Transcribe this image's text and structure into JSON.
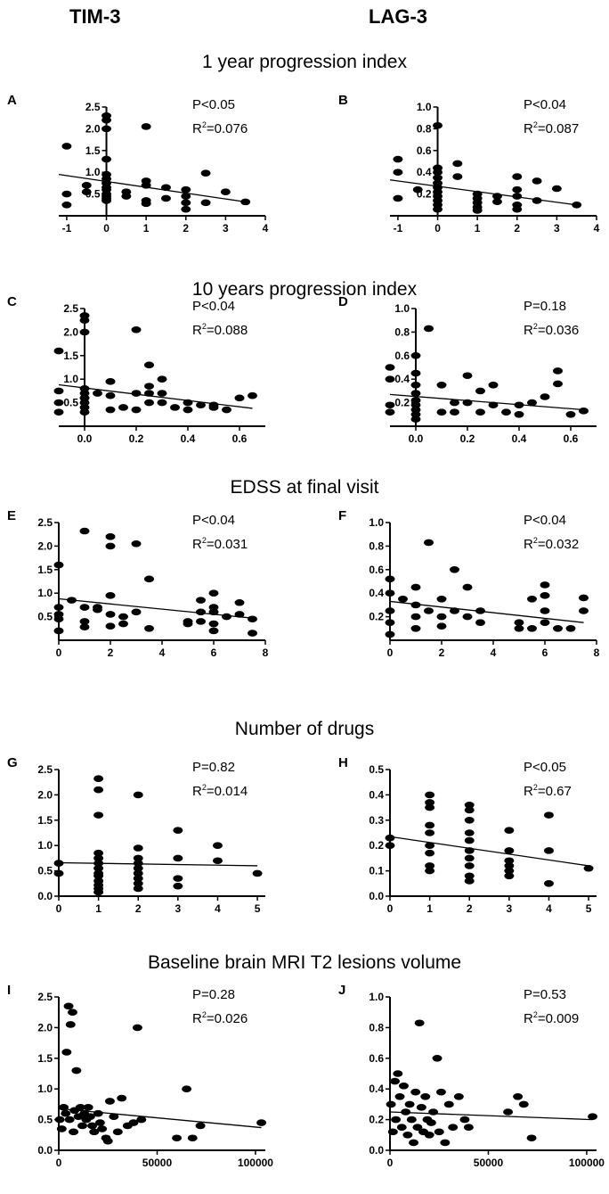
{
  "columns": {
    "left": "TIM-3",
    "right": "LAG-3"
  },
  "sections": [
    "1 year progression index",
    "10 years progression index",
    "EDSS at final visit",
    "Number of drugs",
    "Baseline brain MRI T2 lesions volume"
  ],
  "chart_data": [
    {
      "panel": "A",
      "type": "scatter",
      "section": "1 year progression index",
      "marker": "TIM-3",
      "p_text": "P<0.05",
      "r2_label": "R",
      "r2_value": "=0.076",
      "xlim": [
        -1.2,
        4
      ],
      "ylim": [
        0,
        2.5
      ],
      "xticks": [
        "-1",
        "0",
        "1",
        "2",
        "3",
        "4"
      ],
      "yticks": [
        "0.5",
        "1.0",
        "1.5",
        "2.0",
        "2.5"
      ],
      "xtick_values": [
        -1,
        0,
        1,
        2,
        3,
        4
      ],
      "ytick_values": [
        0.5,
        1.0,
        1.5,
        2.0,
        2.5
      ],
      "fit": {
        "x": [
          -1.2,
          3.5
        ],
        "y": [
          0.95,
          0.32
        ]
      },
      "x": [
        -1,
        -1,
        -1,
        -0.5,
        -0.5,
        0,
        0,
        0,
        0,
        0,
        0,
        0,
        0,
        0,
        0,
        0,
        0,
        0,
        0.5,
        0.5,
        1,
        1,
        1,
        1,
        1,
        1.5,
        1.5,
        2,
        2,
        2,
        2,
        2.5,
        2.5,
        3,
        3.5
      ],
      "y": [
        1.6,
        0.5,
        0.25,
        0.7,
        0.55,
        2.3,
        2.2,
        2.0,
        1.3,
        0.95,
        0.85,
        0.75,
        0.65,
        0.6,
        0.5,
        0.45,
        0.4,
        0.35,
        0.55,
        0.45,
        2.05,
        0.8,
        0.7,
        0.35,
        0.28,
        0.65,
        0.4,
        0.6,
        0.45,
        0.3,
        0.15,
        0.98,
        0.3,
        0.55,
        0.32
      ]
    },
    {
      "panel": "B",
      "type": "scatter",
      "section": "1 year progression index",
      "marker": "LAG-3",
      "p_text": "P<0.04",
      "r2_label": "R",
      "r2_value": "=0.087",
      "xlim": [
        -1.2,
        4
      ],
      "ylim": [
        0,
        1.0
      ],
      "xticks": [
        "-1",
        "0",
        "1",
        "2",
        "3",
        "4"
      ],
      "yticks": [
        "0.2",
        "0.4",
        "0.6",
        "0.8",
        "1.0"
      ],
      "xtick_values": [
        -1,
        0,
        1,
        2,
        3,
        4
      ],
      "ytick_values": [
        0.2,
        0.4,
        0.6,
        0.8,
        1.0
      ],
      "fit": {
        "x": [
          -1.2,
          3.5
        ],
        "y": [
          0.33,
          0.1
        ]
      },
      "x": [
        -1,
        -1,
        -1,
        -0.5,
        0,
        0,
        0,
        0,
        0,
        0,
        0,
        0,
        0,
        0,
        0,
        0.5,
        0.5,
        1,
        1,
        1,
        1,
        1,
        1.5,
        1.5,
        2,
        2,
        2,
        2,
        2,
        2.5,
        2.5,
        3,
        3.5
      ],
      "y": [
        0.52,
        0.4,
        0.16,
        0.24,
        0.83,
        0.44,
        0.4,
        0.35,
        0.3,
        0.26,
        0.22,
        0.18,
        0.14,
        0.1,
        0.06,
        0.48,
        0.36,
        0.2,
        0.16,
        0.12,
        0.08,
        0.05,
        0.18,
        0.13,
        0.36,
        0.24,
        0.18,
        0.1,
        0.06,
        0.32,
        0.14,
        0.25,
        0.1
      ]
    },
    {
      "panel": "C",
      "type": "scatter",
      "section": "10 years progression index",
      "marker": "TIM-3",
      "p_text": "P<0.04",
      "r2_label": "R",
      "r2_value": "=0.088",
      "xlim": [
        -0.1,
        0.7
      ],
      "ylim": [
        0,
        2.5
      ],
      "xticks": [
        "0.0",
        "0.2",
        "0.4",
        "0.6"
      ],
      "yticks": [
        "0.5",
        "1.0",
        "1.5",
        "2.0",
        "2.5"
      ],
      "xtick_values": [
        0,
        0.2,
        0.4,
        0.6
      ],
      "ytick_values": [
        0.5,
        1.0,
        1.5,
        2.0,
        2.5
      ],
      "fit": {
        "x": [
          -0.1,
          0.65
        ],
        "y": [
          0.88,
          0.38
        ]
      },
      "x": [
        -0.1,
        -0.1,
        -0.1,
        -0.1,
        0,
        0,
        0,
        0,
        0,
        0,
        0,
        0,
        0,
        0.05,
        0.1,
        0.1,
        0.1,
        0.15,
        0.2,
        0.2,
        0.2,
        0.25,
        0.25,
        0.25,
        0.25,
        0.3,
        0.3,
        0.3,
        0.35,
        0.4,
        0.4,
        0.45,
        0.5,
        0.5,
        0.55,
        0.6,
        0.65
      ],
      "y": [
        1.6,
        0.5,
        0.3,
        0.75,
        2.35,
        2.25,
        2.0,
        0.8,
        0.7,
        0.6,
        0.5,
        0.4,
        0.3,
        0.7,
        0.95,
        0.65,
        0.35,
        0.4,
        2.05,
        0.7,
        0.35,
        1.3,
        0.85,
        0.7,
        0.5,
        1.0,
        0.7,
        0.5,
        0.4,
        0.5,
        0.35,
        0.45,
        0.45,
        0.4,
        0.35,
        0.6,
        0.65
      ]
    },
    {
      "panel": "D",
      "type": "scatter",
      "section": "10 years progression index",
      "marker": "LAG-3",
      "p_text": "P=0.18",
      "r2_label": "R",
      "r2_value": "=0.036",
      "xlim": [
        -0.1,
        0.7
      ],
      "ylim": [
        0,
        1.0
      ],
      "xticks": [
        "0.0",
        "0.2",
        "0.4",
        "0.6"
      ],
      "yticks": [
        "0.2",
        "0.4",
        "0.6",
        "0.8",
        "1.0"
      ],
      "xtick_values": [
        0,
        0.2,
        0.4,
        0.6
      ],
      "ytick_values": [
        0.2,
        0.4,
        0.6,
        0.8,
        1.0
      ],
      "fit": {
        "x": [
          -0.1,
          0.65
        ],
        "y": [
          0.27,
          0.14
        ]
      },
      "x": [
        -0.1,
        -0.1,
        -0.1,
        -0.1,
        0,
        0,
        0,
        0,
        0,
        0,
        0,
        0,
        0,
        0.05,
        0.1,
        0.1,
        0.15,
        0.15,
        0.2,
        0.2,
        0.25,
        0.25,
        0.3,
        0.3,
        0.35,
        0.4,
        0.4,
        0.45,
        0.5,
        0.55,
        0.55,
        0.6,
        0.65
      ],
      "y": [
        0.5,
        0.4,
        0.18,
        0.12,
        0.6,
        0.45,
        0.35,
        0.28,
        0.22,
        0.18,
        0.14,
        0.1,
        0.06,
        0.83,
        0.35,
        0.12,
        0.2,
        0.12,
        0.43,
        0.2,
        0.3,
        0.12,
        0.35,
        0.18,
        0.12,
        0.18,
        0.1,
        0.2,
        0.25,
        0.47,
        0.36,
        0.1,
        0.13
      ]
    },
    {
      "panel": "E",
      "type": "scatter",
      "section": "EDSS at final visit",
      "marker": "TIM-3",
      "p_text": "P<0.04",
      "r2_label": "R",
      "r2_value": "=0.031",
      "xlim": [
        0,
        8
      ],
      "ylim": [
        0,
        2.5
      ],
      "xticks": [
        "0",
        "2",
        "4",
        "6",
        "8"
      ],
      "yticks": [
        "0.5",
        "1.0",
        "1.5",
        "2.0",
        "2.5"
      ],
      "xtick_values": [
        0,
        2,
        4,
        6,
        8
      ],
      "ytick_values": [
        0.5,
        1.0,
        1.5,
        2.0,
        2.5
      ],
      "fit": {
        "x": [
          0,
          7.5
        ],
        "y": [
          0.88,
          0.47
        ]
      },
      "x": [
        0,
        0,
        0,
        0,
        0,
        0.5,
        1,
        1,
        1,
        1,
        1.5,
        1.5,
        2,
        2,
        2,
        2,
        2,
        2.5,
        2.5,
        3,
        3,
        3.5,
        3.5,
        5,
        5,
        5.5,
        5.5,
        5.5,
        6,
        6,
        6,
        6,
        6,
        6.5,
        7,
        7,
        7.5,
        7.5
      ],
      "y": [
        1.6,
        0.7,
        0.55,
        0.45,
        0.2,
        0.85,
        2.32,
        0.7,
        0.4,
        0.28,
        0.7,
        0.65,
        2.2,
        2.0,
        0.95,
        0.55,
        0.3,
        0.5,
        0.35,
        2.05,
        0.6,
        1.3,
        0.25,
        0.4,
        0.35,
        0.85,
        0.6,
        0.4,
        1.0,
        0.7,
        0.6,
        0.35,
        0.2,
        0.5,
        0.8,
        0.55,
        0.45,
        0.15
      ]
    },
    {
      "panel": "F",
      "type": "scatter",
      "section": "EDSS at final visit",
      "marker": "LAG-3",
      "p_text": "P<0.04",
      "r2_label": "R",
      "r2_value": "=0.032",
      "xlim": [
        0,
        8
      ],
      "ylim": [
        0,
        1.0
      ],
      "xticks": [
        "0",
        "2",
        "4",
        "6",
        "8"
      ],
      "yticks": [
        "0.2",
        "0.4",
        "0.6",
        "0.8",
        "1.0"
      ],
      "xtick_values": [
        0,
        2,
        4,
        6,
        8
      ],
      "ytick_values": [
        0.2,
        0.4,
        0.6,
        0.8,
        1.0
      ],
      "fit": {
        "x": [
          0,
          7.5
        ],
        "y": [
          0.33,
          0.15
        ]
      },
      "x": [
        0,
        0,
        0,
        0,
        0,
        0.5,
        1,
        1,
        1,
        1,
        1.5,
        1.5,
        2,
        2,
        2,
        2.5,
        2.5,
        3,
        3,
        3.5,
        3.5,
        5,
        5,
        5.5,
        5.5,
        6,
        6,
        6,
        6,
        6.5,
        7,
        7.5,
        7.5
      ],
      "y": [
        0.52,
        0.4,
        0.25,
        0.15,
        0.05,
        0.35,
        0.45,
        0.3,
        0.2,
        0.1,
        0.83,
        0.25,
        0.35,
        0.2,
        0.12,
        0.6,
        0.25,
        0.45,
        0.2,
        0.25,
        0.15,
        0.15,
        0.1,
        0.35,
        0.1,
        0.47,
        0.38,
        0.25,
        0.15,
        0.1,
        0.1,
        0.36,
        0.25
      ]
    },
    {
      "panel": "G",
      "type": "scatter",
      "section": "Number of drugs",
      "marker": "TIM-3",
      "p_text": "P=0.82",
      "r2_label": "R",
      "r2_value": "=0.014",
      "xlim": [
        0,
        5.2
      ],
      "ylim": [
        0,
        2.5
      ],
      "xticks": [
        "0",
        "1",
        "2",
        "3",
        "4",
        "5"
      ],
      "yticks": [
        "0.0",
        "0.5",
        "1.0",
        "1.5",
        "2.0",
        "2.5"
      ],
      "xtick_values": [
        0,
        1,
        2,
        3,
        4,
        5
      ],
      "ytick_values": [
        0,
        0.5,
        1.0,
        1.5,
        2.0,
        2.5
      ],
      "fit": {
        "x": [
          0,
          5
        ],
        "y": [
          0.66,
          0.6
        ]
      },
      "x": [
        0,
        0,
        1,
        1,
        1,
        1,
        1,
        1,
        1,
        1,
        1,
        1,
        1,
        1,
        1,
        2,
        2,
        2,
        2,
        2,
        2,
        2,
        2,
        2,
        3,
        3,
        3,
        3,
        4,
        4,
        5
      ],
      "y": [
        0.65,
        0.45,
        2.32,
        2.1,
        1.6,
        0.85,
        0.75,
        0.65,
        0.55,
        0.45,
        0.4,
        0.3,
        0.22,
        0.15,
        0.08,
        2.0,
        0.95,
        0.75,
        0.65,
        0.55,
        0.45,
        0.35,
        0.25,
        0.15,
        1.3,
        0.75,
        0.35,
        0.2,
        1.0,
        0.7,
        0.45
      ]
    },
    {
      "panel": "H",
      "type": "scatter",
      "section": "Number of drugs",
      "marker": "LAG-3",
      "p_text": "P<0.05",
      "r2_label": "R",
      "r2_value": "=0.67",
      "xlim": [
        0,
        5.2
      ],
      "ylim": [
        0,
        0.5
      ],
      "xticks": [
        "0",
        "1",
        "2",
        "3",
        "4",
        "5"
      ],
      "yticks": [
        "0.0",
        "0.1",
        "0.2",
        "0.3",
        "0.4",
        "0.5"
      ],
      "xtick_values": [
        0,
        1,
        2,
        3,
        4,
        5
      ],
      "ytick_values": [
        0,
        0.1,
        0.2,
        0.3,
        0.4,
        0.5
      ],
      "fit": {
        "x": [
          0,
          5
        ],
        "y": [
          0.235,
          0.12
        ]
      },
      "x": [
        0,
        0,
        1,
        1,
        1,
        1,
        1,
        1,
        1,
        1,
        1,
        2,
        2,
        2,
        2,
        2,
        2,
        2,
        2,
        2,
        2,
        3,
        3,
        3,
        3,
        3,
        3,
        4,
        4,
        4,
        5
      ],
      "y": [
        0.23,
        0.2,
        0.4,
        0.37,
        0.35,
        0.28,
        0.25,
        0.2,
        0.17,
        0.12,
        0.1,
        0.36,
        0.34,
        0.3,
        0.25,
        0.22,
        0.18,
        0.15,
        0.12,
        0.08,
        0.06,
        0.26,
        0.18,
        0.14,
        0.12,
        0.1,
        0.08,
        0.32,
        0.18,
        0.05,
        0.11
      ]
    },
    {
      "panel": "I",
      "type": "scatter",
      "section": "Baseline brain MRI T2 lesions volume",
      "marker": "TIM-3",
      "p_text": "P=0.28",
      "r2_label": "R",
      "r2_value": "=0.026",
      "xlim": [
        0,
        105000
      ],
      "ylim": [
        0,
        2.5
      ],
      "xticks": [
        "0",
        "50000",
        "100000"
      ],
      "yticks": [
        "0.0",
        "0.5",
        "1.0",
        "1.5",
        "2.0",
        "2.5"
      ],
      "xtick_values": [
        0,
        50000,
        100000
      ],
      "ytick_values": [
        0,
        0.5,
        1.0,
        1.5,
        2.0,
        2.5
      ],
      "fit": {
        "x": [
          0,
          103000
        ],
        "y": [
          0.68,
          0.37
        ]
      },
      "x": [
        500,
        1500,
        2500,
        3500,
        4000,
        5000,
        5500,
        6000,
        7000,
        7500,
        8000,
        9000,
        10000,
        11000,
        12000,
        13000,
        14000,
        15000,
        16000,
        17000,
        18000,
        20000,
        21000,
        22000,
        24000,
        25000,
        26000,
        28000,
        30000,
        32000,
        35000,
        38000,
        40000,
        42000,
        60000,
        65000,
        68000,
        72000,
        103000
      ],
      "y": [
        0.5,
        0.35,
        0.7,
        0.6,
        1.6,
        2.35,
        0.5,
        2.05,
        2.25,
        0.3,
        0.65,
        1.3,
        0.55,
        0.7,
        0.4,
        0.6,
        0.5,
        0.7,
        0.55,
        0.4,
        0.3,
        0.6,
        0.45,
        0.35,
        0.2,
        0.15,
        0.8,
        0.55,
        0.3,
        0.85,
        0.4,
        0.45,
        2.0,
        0.5,
        0.2,
        1.0,
        0.2,
        0.4,
        0.45
      ]
    },
    {
      "panel": "J",
      "type": "scatter",
      "section": "Baseline brain MRI T2 lesions volume",
      "marker": "LAG-3",
      "p_text": "P=0.53",
      "r2_label": "R",
      "r2_value": "=0.009",
      "xlim": [
        0,
        105000
      ],
      "ylim": [
        0,
        1.0
      ],
      "xticks": [
        "0",
        "50000",
        "100000"
      ],
      "yticks": [
        "0.0",
        "0.2",
        "0.4",
        "0.6",
        "0.8",
        "1.0"
      ],
      "xtick_values": [
        0,
        50000,
        100000
      ],
      "ytick_values": [
        0,
        0.2,
        0.4,
        0.6,
        0.8,
        1.0
      ],
      "fit": {
        "x": [
          0,
          103000
        ],
        "y": [
          0.25,
          0.2
        ]
      },
      "x": [
        500,
        1500,
        2500,
        3000,
        4000,
        5000,
        6000,
        7000,
        8000,
        9000,
        10000,
        11000,
        12000,
        13000,
        14000,
        15000,
        16000,
        17000,
        18000,
        19000,
        20000,
        21000,
        22000,
        24000,
        25000,
        26000,
        28000,
        30000,
        32000,
        35000,
        38000,
        40000,
        60000,
        65000,
        68000,
        72000,
        103000
      ],
      "y": [
        0.3,
        0.12,
        0.45,
        0.2,
        0.5,
        0.35,
        0.15,
        0.42,
        0.25,
        0.1,
        0.3,
        0.2,
        0.05,
        0.38,
        0.15,
        0.83,
        0.28,
        0.12,
        0.35,
        0.2,
        0.1,
        0.18,
        0.25,
        0.6,
        0.12,
        0.38,
        0.05,
        0.3,
        0.15,
        0.35,
        0.2,
        0.15,
        0.25,
        0.35,
        0.3,
        0.08,
        0.22
      ]
    }
  ]
}
